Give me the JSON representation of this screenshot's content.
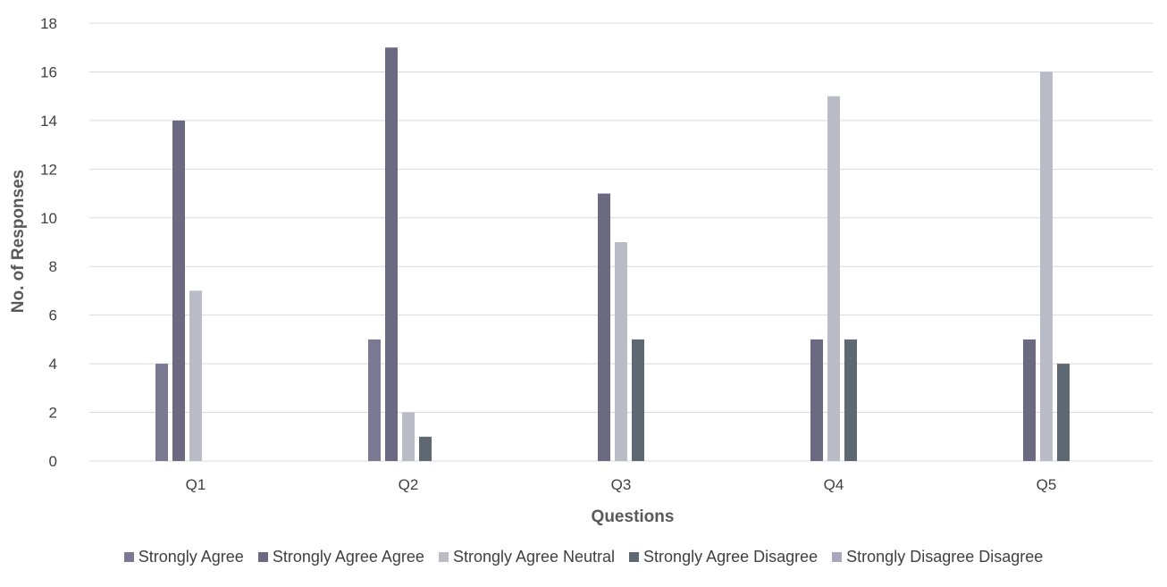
{
  "chart_data": {
    "type": "bar",
    "title": "",
    "xlabel": "Questions",
    "ylabel": "No. of Responses",
    "categories": [
      "Q1",
      "Q2",
      "Q3",
      "Q4",
      "Q5"
    ],
    "ylim": [
      0,
      18
    ],
    "yticks": [
      0,
      2,
      4,
      6,
      8,
      10,
      12,
      14,
      16,
      18
    ],
    "grid": true,
    "legend_position": "bottom",
    "series": [
      {
        "name": "Strongly Agree",
        "color": "#7b7891",
        "values": [
          4,
          5,
          0,
          0,
          0
        ]
      },
      {
        "name": "Strongly Agree Agree",
        "color": "#6c6a82",
        "values": [
          14,
          17,
          11,
          5,
          5
        ]
      },
      {
        "name": "Strongly Agree Neutral",
        "color": "#b9bbc6",
        "values": [
          7,
          2,
          9,
          15,
          16
        ]
      },
      {
        "name": "Strongly Agree Disagree",
        "color": "#5e6872",
        "values": [
          0,
          1,
          5,
          5,
          4
        ]
      },
      {
        "name": "Strongly Disagree Disagree",
        "color": "#a9a7bd",
        "values": [
          0,
          0,
          0,
          0,
          0
        ]
      }
    ]
  }
}
